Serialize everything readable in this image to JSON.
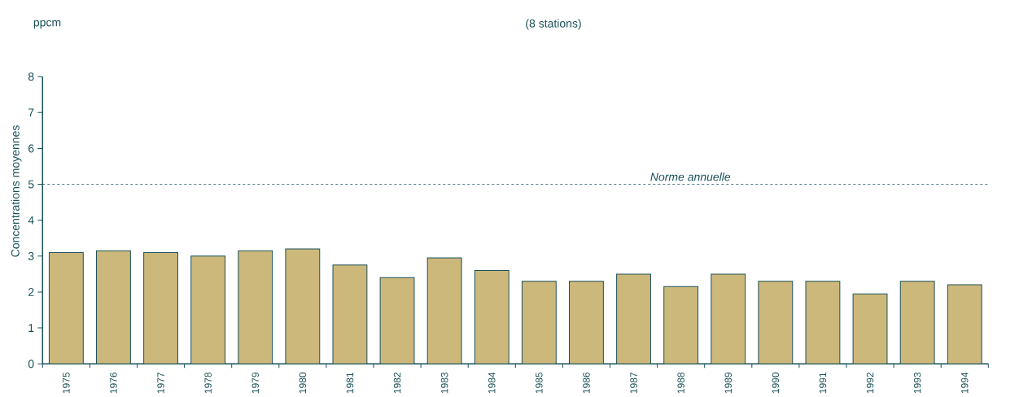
{
  "chart_data": {
    "type": "bar",
    "title": "(8 stations)",
    "ylabel": "Concentrations moyennes",
    "annotations": [
      "ppcm"
    ],
    "categories": [
      "1975",
      "1976",
      "1977",
      "1978",
      "1979",
      "1980",
      "1981",
      "1982",
      "1983",
      "1984",
      "1985",
      "1986",
      "1987",
      "1988",
      "1989",
      "1990",
      "1991",
      "1992",
      "1993",
      "1994"
    ],
    "values": [
      3.1,
      3.15,
      3.1,
      3.0,
      3.15,
      3.2,
      2.75,
      2.4,
      2.95,
      2.6,
      2.3,
      2.3,
      2.5,
      2.15,
      2.5,
      2.3,
      2.3,
      1.95,
      2.3,
      2.2
    ],
    "color": "#cdb87c",
    "ylim": [
      0,
      8
    ],
    "yticks": [
      0,
      1,
      2,
      3,
      4,
      5,
      6,
      7,
      8
    ],
    "ref_lines": [
      {
        "axis": "y",
        "value": 5,
        "label": "Norme annuelle",
        "line_style": "dashed",
        "color": "#1a5158"
      }
    ],
    "grid": false
  }
}
